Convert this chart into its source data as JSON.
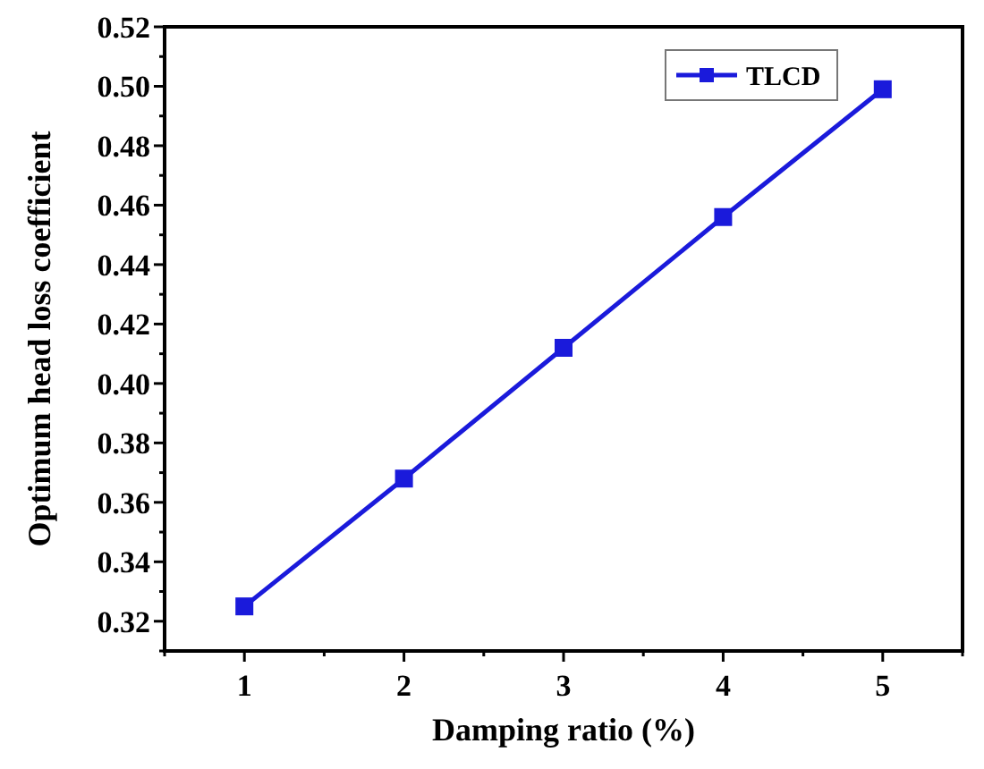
{
  "chart_data": {
    "type": "line",
    "xlabel": "Damping ratio (%)",
    "ylabel": "Optimum head loss coefficient",
    "x": [
      1,
      2,
      3,
      4,
      5
    ],
    "series": [
      {
        "name": "TLCD",
        "color": "#1a1adb",
        "values": [
          0.325,
          0.368,
          0.412,
          0.456,
          0.499
        ]
      }
    ],
    "xlim": [
      0.5,
      5.5
    ],
    "ylim": [
      0.31,
      0.52
    ],
    "xticks": [
      {
        "value": 0.5,
        "label": null
      },
      1,
      {
        "value": 1.5,
        "label": null
      },
      2,
      {
        "value": 2.5,
        "label": null
      },
      3,
      {
        "value": 3.5,
        "label": null
      },
      4,
      {
        "value": 4.5,
        "label": null
      },
      5,
      {
        "value": 5.5,
        "label": null
      }
    ],
    "yticks": [
      {
        "value": 0.31,
        "label": null
      },
      {
        "value": 0.32,
        "label": "0.32"
      },
      {
        "value": 0.33,
        "label": null
      },
      {
        "value": 0.34,
        "label": "0.34"
      },
      {
        "value": 0.35,
        "label": null
      },
      {
        "value": 0.36,
        "label": "0.36"
      },
      {
        "value": 0.37,
        "label": null
      },
      {
        "value": 0.38,
        "label": "0.38"
      },
      {
        "value": 0.39,
        "label": null
      },
      {
        "value": 0.4,
        "label": "0.40"
      },
      {
        "value": 0.41,
        "label": null
      },
      {
        "value": 0.42,
        "label": "0.42"
      },
      {
        "value": 0.43,
        "label": null
      },
      {
        "value": 0.44,
        "label": "0.44"
      },
      {
        "value": 0.45,
        "label": null
      },
      {
        "value": 0.46,
        "label": "0.46"
      },
      {
        "value": 0.47,
        "label": null
      },
      {
        "value": 0.48,
        "label": "0.48"
      },
      {
        "value": 0.49,
        "label": null
      },
      {
        "value": 0.5,
        "label": "0.50"
      },
      {
        "value": 0.51,
        "label": null
      },
      {
        "value": 0.52,
        "label": "0.52"
      }
    ],
    "marker": "square",
    "legend": "top right",
    "grid": false
  }
}
